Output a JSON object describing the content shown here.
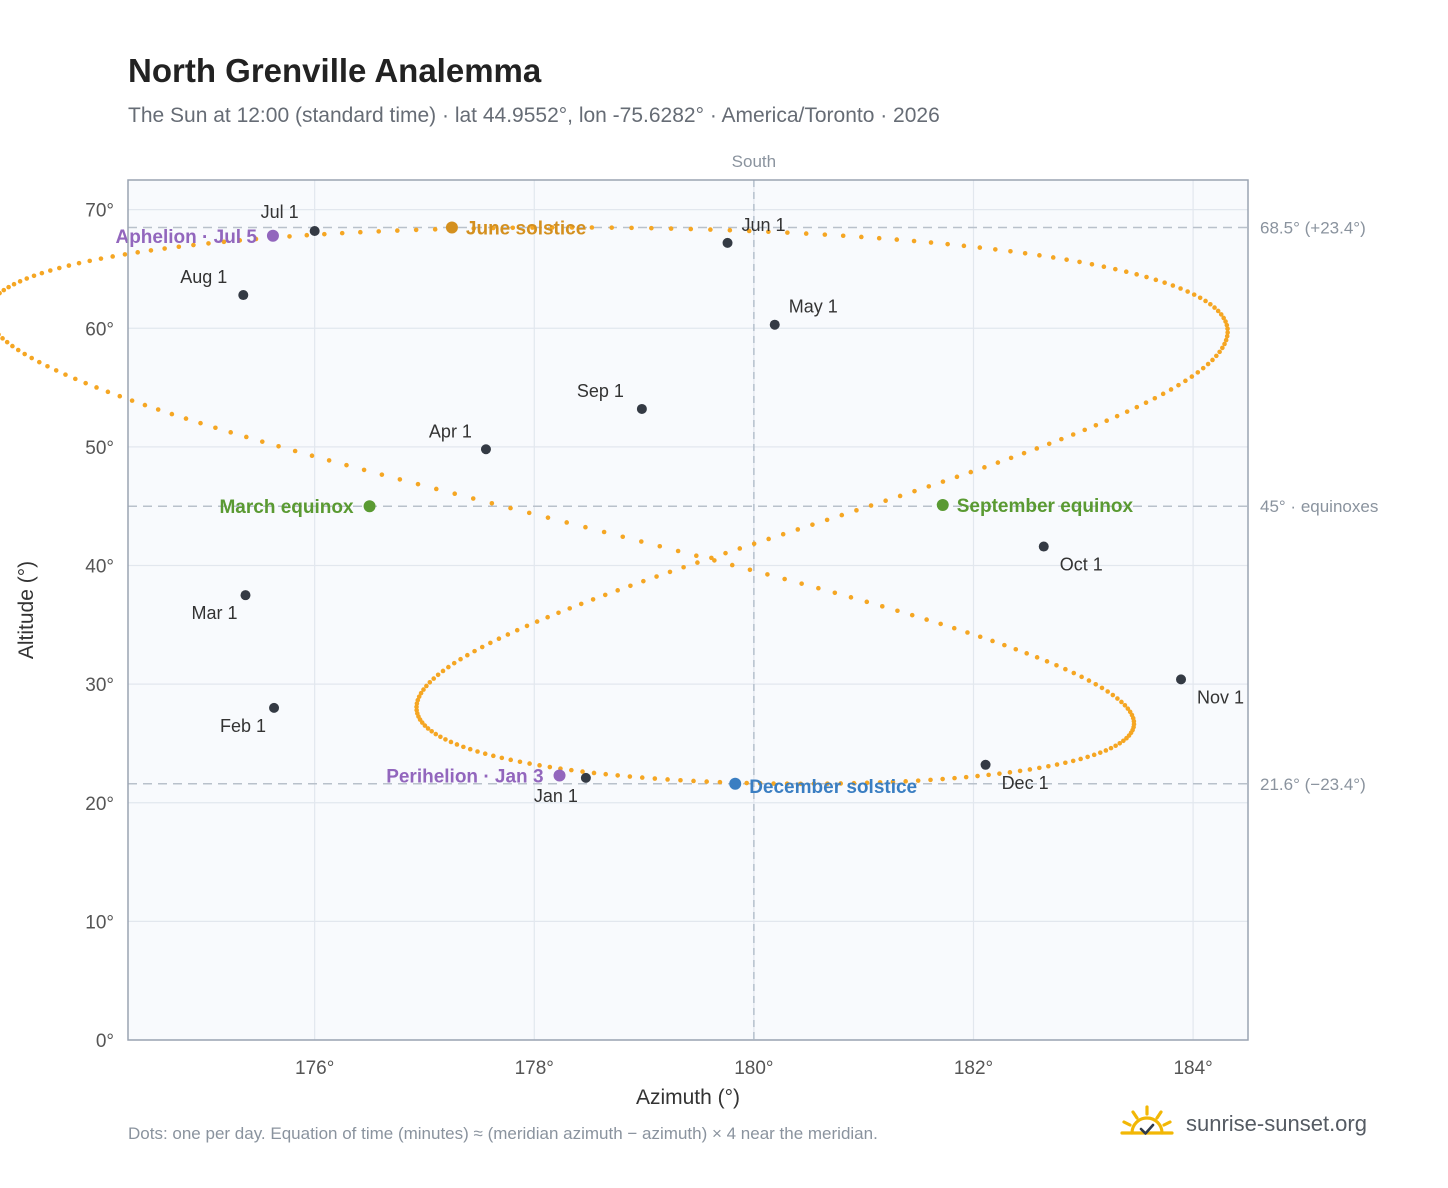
{
  "header": {
    "title": "North Grenville Analemma",
    "subtitle": "The Sun at 12:00 (standard time) · lat 44.9552°, lon -75.6282° · America/Toronto · 2026"
  },
  "footer": {
    "note": "Dots: one per day. Equation of time (minutes) ≈ (meridian azimuth − azimuth) × 4 near the meridian.",
    "brand": "sunrise-sunset.org",
    "brand_icon": "sun-check-icon"
  },
  "chart_data": {
    "type": "scatter",
    "title": "North Grenville Analemma",
    "xlabel": "Azimuth (°)",
    "ylabel": "Altitude (°)",
    "xlim": [
      174.3,
      184.5
    ],
    "ylim": [
      0,
      72.5
    ],
    "x_ticks": [
      {
        "value": 176,
        "label": "176°"
      },
      {
        "value": 178,
        "label": "178°"
      },
      {
        "value": 180,
        "label": "180°"
      },
      {
        "value": 182,
        "label": "182°"
      },
      {
        "value": 184,
        "label": "184°"
      }
    ],
    "y_ticks": [
      {
        "value": 0,
        "label": "0°"
      },
      {
        "value": 10,
        "label": "10°"
      },
      {
        "value": 20,
        "label": "20°"
      },
      {
        "value": 30,
        "label": "30°"
      },
      {
        "value": 40,
        "label": "40°"
      },
      {
        "value": 50,
        "label": "50°"
      },
      {
        "value": 60,
        "label": "60°"
      },
      {
        "value": 70,
        "label": "70°"
      }
    ],
    "grid": true,
    "meridian": {
      "x": 180,
      "label": "South"
    },
    "reference_lines": [
      {
        "y": 68.5,
        "label": "68.5° (+23.4°)"
      },
      {
        "y": 45.0,
        "label": "45° · equinoxes"
      },
      {
        "y": 21.6,
        "label": "21.6° (−23.4°)"
      }
    ],
    "curve_color": "#f5a623",
    "month_points": [
      {
        "label": "Jan 1",
        "x": 178.47,
        "y": 22.1,
        "anchor": "below-left"
      },
      {
        "label": "Feb 1",
        "x": 175.63,
        "y": 28.0,
        "anchor": "below-left"
      },
      {
        "label": "Mar 1",
        "x": 175.37,
        "y": 37.5,
        "anchor": "below-left"
      },
      {
        "label": "Apr 1",
        "x": 177.56,
        "y": 49.8,
        "anchor": "above-left"
      },
      {
        "label": "May 1",
        "x": 180.19,
        "y": 60.3,
        "anchor": "above-right"
      },
      {
        "label": "Jun 1",
        "x": 179.76,
        "y": 67.2,
        "anchor": "above-right"
      },
      {
        "label": "Jul 1",
        "x": 176.0,
        "y": 68.2,
        "anchor": "above-left"
      },
      {
        "label": "Aug 1",
        "x": 175.35,
        "y": 62.8,
        "anchor": "above-left"
      },
      {
        "label": "Sep 1",
        "x": 178.98,
        "y": 53.2,
        "anchor": "above-left"
      },
      {
        "label": "Oct 1",
        "x": 182.64,
        "y": 41.6,
        "anchor": "below-right"
      },
      {
        "label": "Nov 1",
        "x": 183.89,
        "y": 30.4,
        "anchor": "below-right"
      },
      {
        "label": "Dec 1",
        "x": 182.11,
        "y": 23.2,
        "anchor": "below-right"
      }
    ],
    "special_points": [
      {
        "label": "June solstice",
        "x": 177.25,
        "y": 68.5,
        "color": "#d4901f",
        "anchor": "right"
      },
      {
        "label": "December solstice",
        "x": 179.83,
        "y": 21.6,
        "color": "#3a7ec2",
        "anchor": "right-below"
      },
      {
        "label": "March equinox",
        "x": 176.5,
        "y": 45.0,
        "color": "#5a9a32",
        "anchor": "left"
      },
      {
        "label": "September equinox",
        "x": 181.72,
        "y": 45.1,
        "color": "#5a9a32",
        "anchor": "right"
      },
      {
        "label": "Aphelion · Jul 5",
        "x": 175.62,
        "y": 67.8,
        "color": "#9266bd",
        "anchor": "left"
      },
      {
        "label": "Perihelion · Jan 3",
        "x": 178.23,
        "y": 22.3,
        "color": "#9266bd",
        "anchor": "left"
      }
    ],
    "curve_shape": {
      "x_center": 179.38,
      "x_amp_a": 4.4,
      "x_amp_b": 2.0,
      "b_phase": 2.14,
      "y_center": 45.05,
      "y_amp": 23.45,
      "year_phase": 4.4588
    }
  }
}
